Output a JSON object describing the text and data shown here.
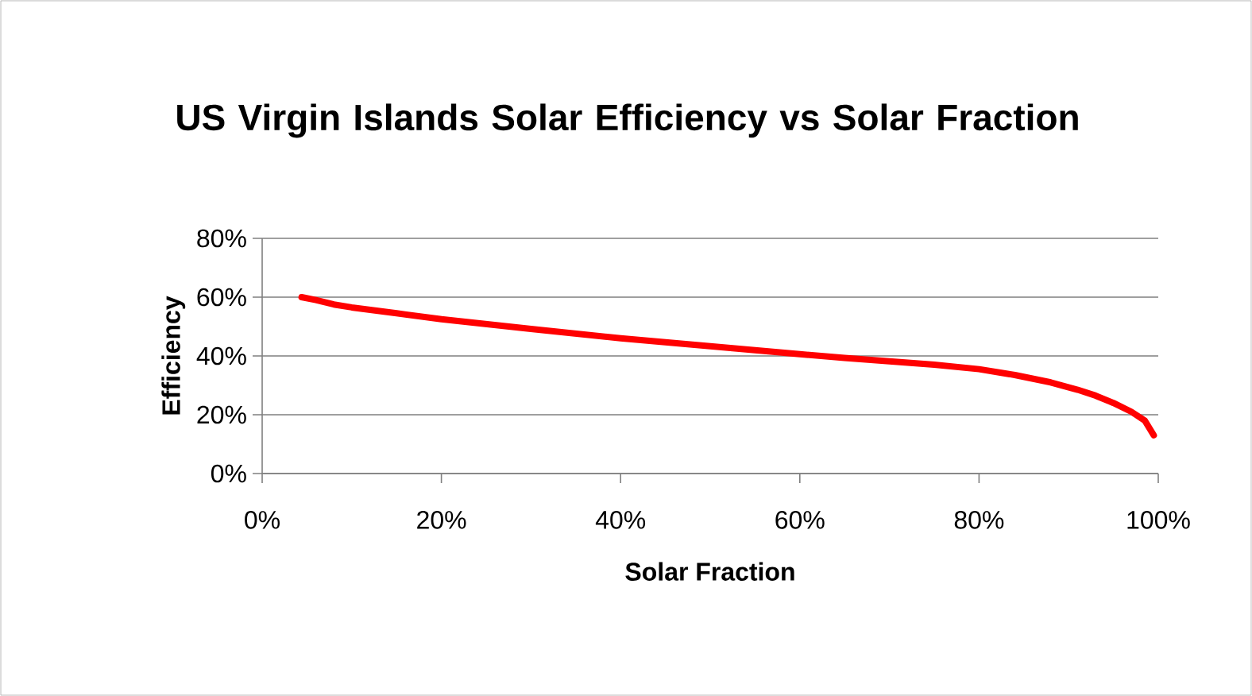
{
  "chart_data": {
    "type": "line",
    "title": "US Virgin Islands Solar Efficiency vs Solar Fraction",
    "xlabel": "Solar Fraction",
    "ylabel": "Efficiency",
    "xlim": [
      0,
      100
    ],
    "ylim": [
      0,
      80
    ],
    "xticks": [
      {
        "value": 0,
        "label": "0%"
      },
      {
        "value": 20,
        "label": "20%"
      },
      {
        "value": 40,
        "label": "40%"
      },
      {
        "value": 60,
        "label": "60%"
      },
      {
        "value": 80,
        "label": "80%"
      },
      {
        "value": 100,
        "label": "100%"
      }
    ],
    "yticks": [
      {
        "value": 0,
        "label": "0%"
      },
      {
        "value": 20,
        "label": "20%"
      },
      {
        "value": 40,
        "label": "40%"
      },
      {
        "value": 60,
        "label": "60%"
      },
      {
        "value": 80,
        "label": "80%"
      }
    ],
    "grid": "y",
    "legend": false,
    "marker": "none",
    "line_style": "solid",
    "series": [
      {
        "color": "#ff0000",
        "x": [
          4.4,
          6,
          8,
          10,
          15,
          20,
          30,
          40,
          50,
          60,
          65,
          70,
          75,
          80,
          84,
          88,
          91,
          93,
          95,
          97,
          98.5,
          99.5
        ],
        "values": [
          60,
          59,
          57.5,
          56.5,
          54.5,
          52.5,
          49.2,
          46,
          43.3,
          40.6,
          39.3,
          38.2,
          37,
          35.5,
          33.5,
          31,
          28.5,
          26.5,
          24,
          21,
          18,
          13
        ]
      }
    ]
  }
}
